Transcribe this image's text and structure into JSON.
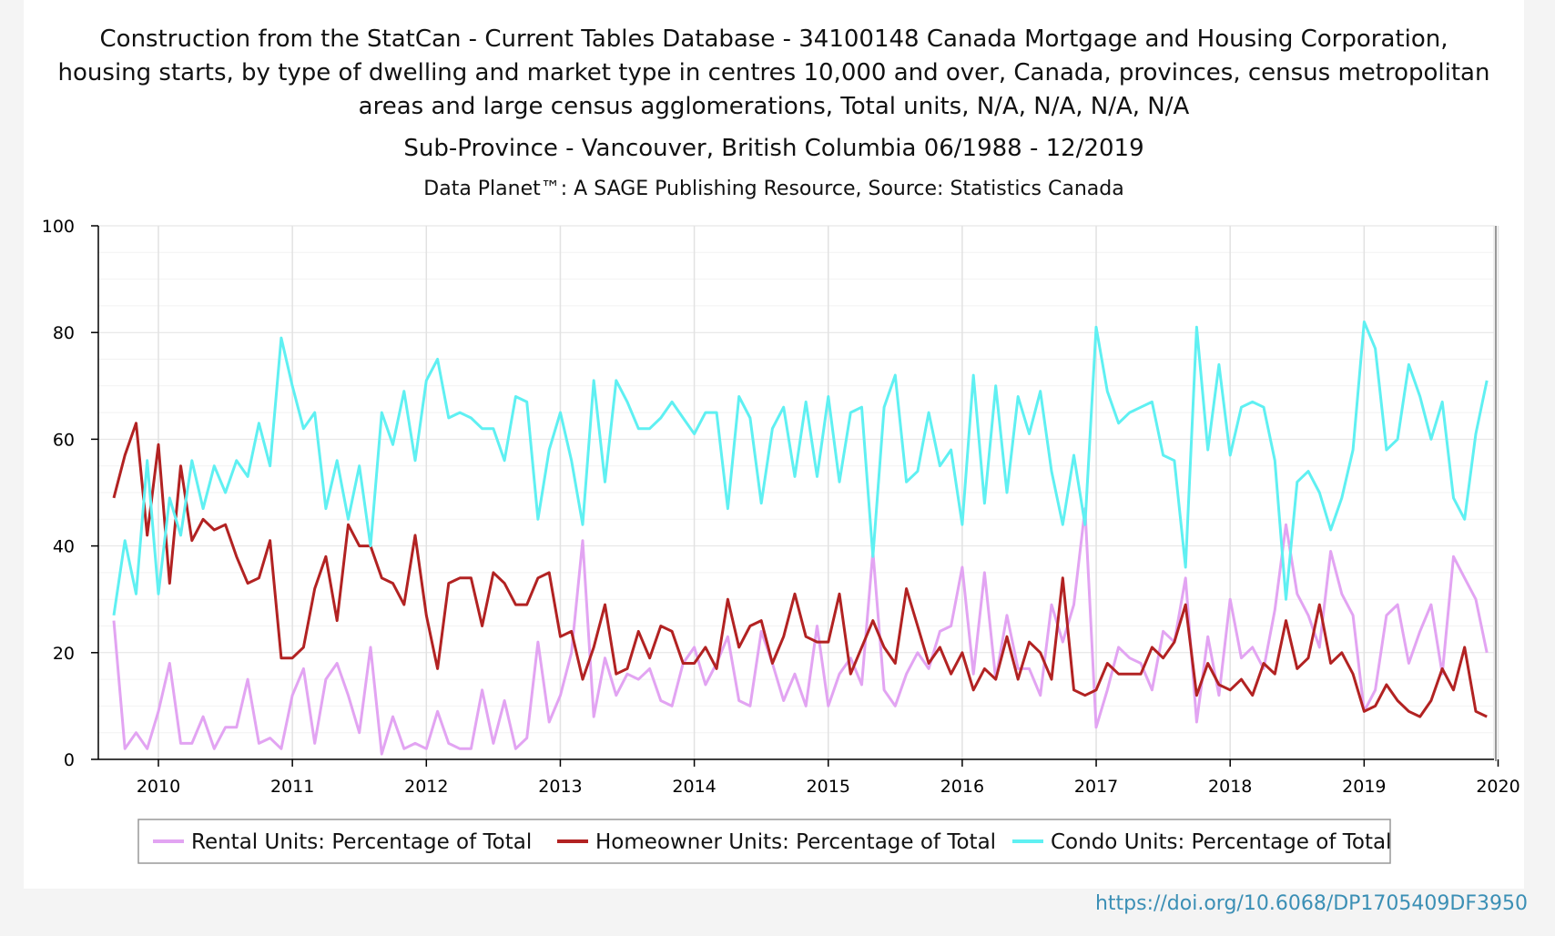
{
  "title_lines": [
    "Construction from the StatCan - Current Tables Database - 34100148 Canada Mortgage and Housing Corporation,",
    "housing starts, by type of dwelling and market type in centres 10,000 and over, Canada, provinces, census metropolitan",
    "areas and large census agglomerations, Total units, N/A, N/A, N/A, N/A"
  ],
  "subtitle": "Sub-Province - Vancouver, British Columbia 06/1988 - 12/2019",
  "source": "Data Planet™: A SAGE Publishing Resource, Source: Statistics Canada",
  "doi": "https://doi.org/10.6068/DP1705409DF3950",
  "chart_data": {
    "type": "line",
    "title": "Construction from the StatCan - Current Tables Database - 34100148 Canada Mortgage and Housing Corporation, housing starts, by type of dwelling and market type in centres 10,000 and over, Canada, provinces, census metropolitan areas and large census agglomerations, Total units, N/A, N/A, N/A, N/A",
    "subtitle": "Sub-Province - Vancouver, British Columbia 06/1988 - 12/2019",
    "xlabel": "",
    "ylabel": "",
    "x_start": "2009-09",
    "x_end": "2019-12",
    "x_step": "1 month",
    "xlim": [
      2009.6,
      2020.1
    ],
    "ylim": [
      0,
      100
    ],
    "x_ticks": [
      2010,
      2011,
      2012,
      2013,
      2014,
      2015,
      2016,
      2017,
      2018,
      2019,
      2020
    ],
    "y_ticks": [
      0,
      20,
      40,
      60,
      80,
      100
    ],
    "grid": true,
    "legend_position": "bottom",
    "series": [
      {
        "name": "Rental Units: Percentage of Total",
        "color": "#e2a4f2",
        "values": [
          26,
          2,
          5,
          2,
          9,
          18,
          3,
          3,
          8,
          2,
          6,
          6,
          15,
          3,
          4,
          2,
          12,
          17,
          3,
          15,
          18,
          12,
          5,
          21,
          1,
          8,
          2,
          3,
          2,
          9,
          3,
          2,
          2,
          13,
          3,
          11,
          2,
          4,
          22,
          7,
          12,
          20,
          41,
          8,
          19,
          12,
          16,
          15,
          17,
          11,
          10,
          18,
          21,
          14,
          18,
          23,
          11,
          10,
          24,
          18,
          11,
          16,
          10,
          25,
          10,
          16,
          19,
          14,
          39,
          13,
          10,
          16,
          20,
          17,
          24,
          25,
          36,
          16,
          35,
          15,
          27,
          17,
          17,
          12,
          29,
          22,
          29,
          47,
          6,
          13,
          21,
          19,
          18,
          13,
          24,
          22,
          34,
          7,
          23,
          12,
          30,
          19,
          21,
          17,
          28,
          44,
          31,
          27,
          21,
          39,
          31,
          27,
          9,
          13,
          27,
          29,
          18,
          24,
          29,
          16,
          38,
          34,
          30,
          20
        ]
      },
      {
        "name": "Homeowner Units: Percentage of Total",
        "color": "#b22222",
        "values": [
          49,
          57,
          63,
          42,
          59,
          33,
          55,
          41,
          45,
          43,
          44,
          38,
          33,
          34,
          41,
          19,
          19,
          21,
          32,
          38,
          26,
          44,
          40,
          40,
          34,
          33,
          29,
          42,
          27,
          17,
          33,
          34,
          34,
          25,
          35,
          33,
          29,
          29,
          34,
          35,
          23,
          24,
          15,
          21,
          29,
          16,
          17,
          24,
          19,
          25,
          24,
          18,
          18,
          21,
          17,
          30,
          21,
          25,
          26,
          18,
          23,
          31,
          23,
          22,
          22,
          31,
          16,
          21,
          26,
          21,
          18,
          32,
          25,
          18,
          21,
          16,
          20,
          13,
          17,
          15,
          23,
          15,
          22,
          20,
          15,
          34,
          13,
          12,
          13,
          18,
          16,
          16,
          16,
          21,
          19,
          22,
          29,
          12,
          18,
          14,
          13,
          15,
          12,
          18,
          16,
          26,
          17,
          19,
          29,
          18,
          20,
          16,
          9,
          10,
          14,
          11,
          9,
          8,
          11,
          17,
          13,
          21,
          9,
          8
        ]
      },
      {
        "name": "Condo Units: Percentage of Total",
        "color": "#5ff0f2",
        "values": [
          27,
          41,
          31,
          56,
          31,
          49,
          42,
          56,
          47,
          55,
          50,
          56,
          53,
          63,
          55,
          79,
          70,
          62,
          65,
          47,
          56,
          45,
          55,
          40,
          65,
          59,
          69,
          56,
          71,
          75,
          64,
          65,
          64,
          62,
          62,
          56,
          68,
          67,
          45,
          58,
          65,
          56,
          44,
          71,
          52,
          71,
          67,
          62,
          62,
          64,
          67,
          64,
          61,
          65,
          65,
          47,
          68,
          64,
          48,
          62,
          66,
          53,
          67,
          53,
          68,
          52,
          65,
          66,
          38,
          66,
          72,
          52,
          54,
          65,
          55,
          58,
          44,
          72,
          48,
          70,
          50,
          68,
          61,
          69,
          54,
          44,
          57,
          44,
          81,
          69,
          63,
          65,
          66,
          67,
          57,
          56,
          36,
          81,
          58,
          74,
          57,
          66,
          67,
          66,
          56,
          30,
          52,
          54,
          50,
          43,
          49,
          58,
          82,
          77,
          58,
          60,
          74,
          68,
          60,
          67,
          49,
          45,
          61,
          71
        ]
      }
    ]
  }
}
